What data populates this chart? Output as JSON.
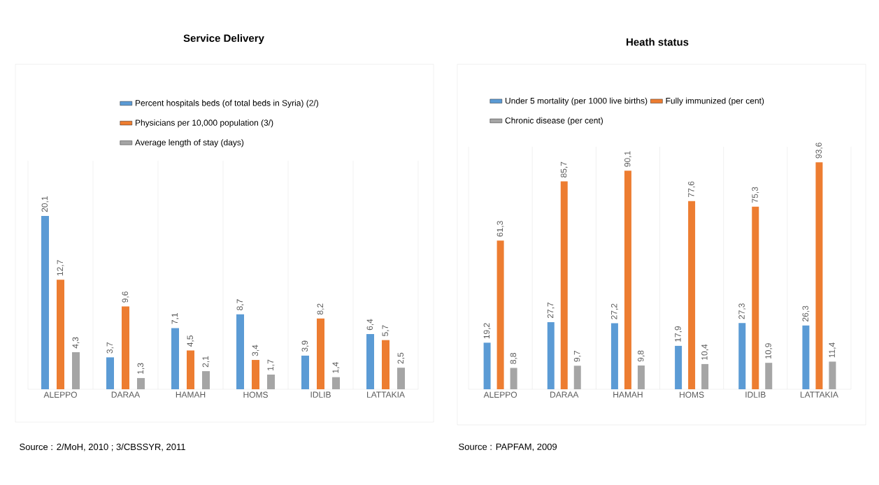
{
  "chart_data": [
    {
      "type": "bar",
      "title": "Service Delivery",
      "categories": [
        "ALEPPO",
        "DARAA",
        "HAMAH",
        "HOMS",
        "IDLIB",
        "LATTAKIA"
      ],
      "series": [
        {
          "name": "Percent hospitals beds (of total beds in Syria) (2/)",
          "color": "#5b9bd5",
          "values": [
            20.1,
            3.7,
            7.1,
            8.7,
            3.9,
            6.4
          ],
          "value_labels": [
            "20,1",
            "3,7",
            "7,1",
            "8,7",
            "3,9",
            "6,4"
          ]
        },
        {
          "name": "Physicians per 10,000 population (3/)",
          "color": "#ed7d31",
          "values": [
            12.7,
            9.6,
            4.5,
            3.4,
            8.2,
            5.7
          ],
          "value_labels": [
            "12,7",
            "9,6",
            "4,5",
            "3,4",
            "8,2",
            "5,7"
          ]
        },
        {
          "name": "Average length of stay (days)",
          "color": "#a5a5a5",
          "values": [
            4.3,
            1.3,
            2.1,
            1.7,
            1.4,
            2.5
          ],
          "value_labels": [
            "4,3",
            "1,3",
            "2,1",
            "1,7",
            "1,4",
            "2,5"
          ]
        }
      ],
      "ylim": [
        0,
        26.5
      ],
      "legend": "top",
      "grid": "x",
      "tick_labels": "x",
      "annotations": [
        "Source : 2/MoH, 2010 ; 3/CBSSYR, 2011"
      ]
    },
    {
      "type": "bar",
      "title": "Heath status",
      "categories": [
        "ALEPPO",
        "DARAA",
        "HAMAH",
        "HOMS",
        "IDLIB",
        "LATTAKIA"
      ],
      "series": [
        {
          "name": "Under 5 mortality (per 1000 live births)",
          "color": "#5b9bd5",
          "values": [
            19.2,
            27.7,
            27.2,
            17.9,
            27.3,
            26.3
          ],
          "value_labels": [
            "19,2",
            "27,7",
            "27,2",
            "17,9",
            "27,3",
            "26,3"
          ]
        },
        {
          "name": "Fully immunized (per cent)",
          "color": "#ed7d31",
          "values": [
            61.3,
            85.7,
            90.1,
            77.6,
            75.3,
            93.6
          ],
          "value_labels": [
            "61,3",
            "85,7",
            "90,1",
            "77,6",
            "75,3",
            "93,6"
          ]
        },
        {
          "name": "Chronic disease (per cent)",
          "color": "#a5a5a5",
          "values": [
            8.8,
            9.7,
            9.8,
            10.4,
            10.9,
            11.4
          ],
          "value_labels": [
            "8,8",
            "9,7",
            "9,8",
            "10,4",
            "10,9",
            "11,4"
          ]
        }
      ],
      "ylim": [
        0,
        100
      ],
      "legend": "top",
      "grid": "x",
      "tick_labels": "x",
      "annotations": [
        "Source : PAPFAM, 2009"
      ]
    }
  ]
}
